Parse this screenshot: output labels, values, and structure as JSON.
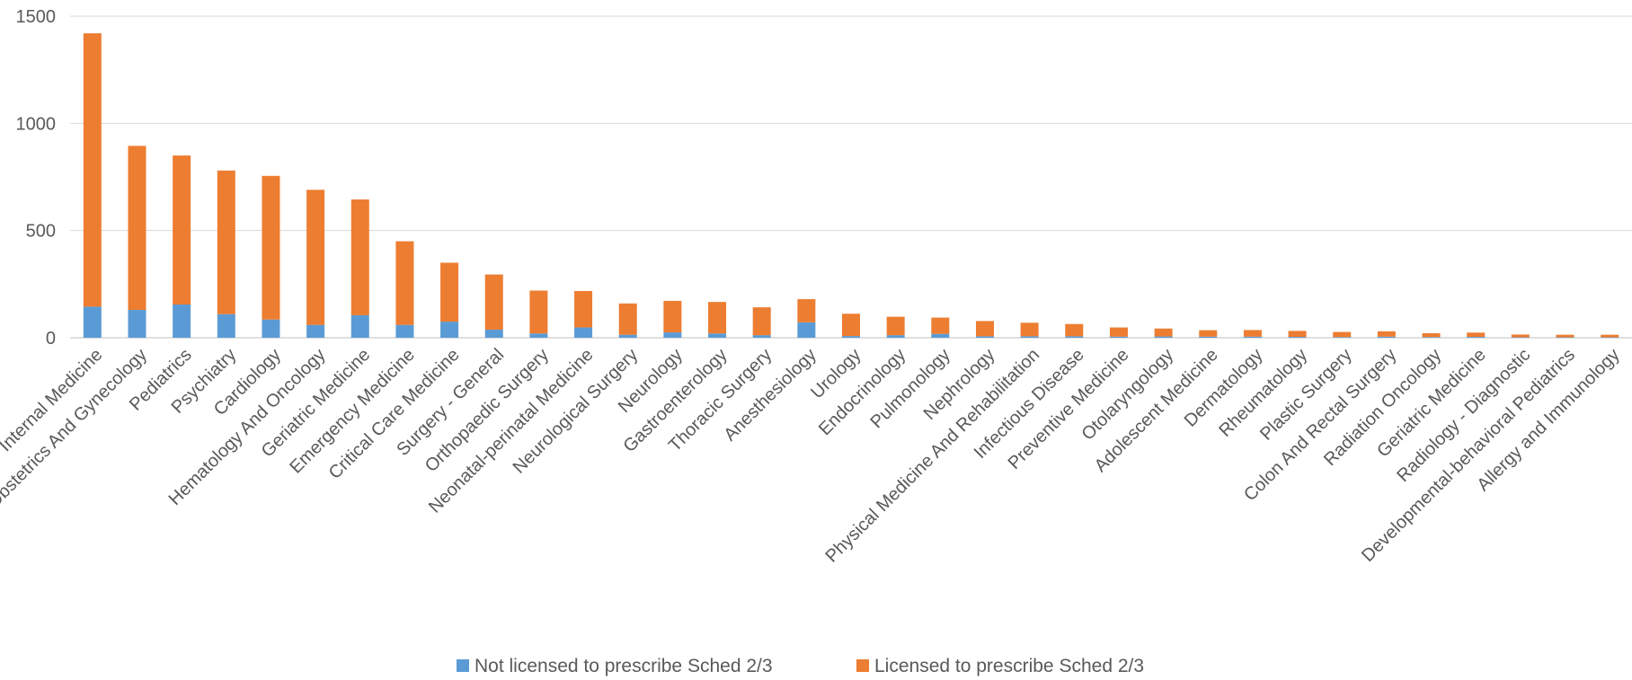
{
  "chart_data": {
    "type": "bar",
    "stacked": true,
    "title": "",
    "xlabel": "",
    "ylabel": "",
    "ylim": [
      0,
      1500
    ],
    "yticks": [
      0,
      500,
      1000,
      1500
    ],
    "grid": true,
    "legend_position": "bottom",
    "categories": [
      "Internal Medicine",
      "Obstetrics And Gynecology",
      "Pediatrics",
      "Psychiatry",
      "Cardiology",
      "Hematology And Oncology",
      "Geriatric Medicine",
      "Emergency Medicine",
      "Critical Care Medicine",
      "Surgery - General",
      "Orthopaedic Surgery",
      "Neonatal-perinatal Medicine",
      "Neurological Surgery",
      "Neurology",
      "Gastroenterology",
      "Thoracic Surgery",
      "Anesthesiology",
      "Urology",
      "Endocrinology",
      "Pulmonology",
      "Nephrology",
      "Physical Medicine And Rehabilitation",
      "Infectious Disease",
      "Preventive Medicine",
      "Otolaryngology",
      "Adolescent Medicine",
      "Dermatology",
      "Rheumatology",
      "Plastic Surgery",
      "Colon And Rectal Surgery",
      "Radiation Oncology",
      "Geriatric Medicine",
      "Radiology - Diagnostic",
      "Developmental-behavioral Pediatrics",
      "Allergy and Immunology"
    ],
    "series": [
      {
        "name": "Not licensed to prescribe Sched 2/3",
        "color": "#5b9bd5",
        "values": [
          145,
          130,
          155,
          110,
          85,
          60,
          105,
          60,
          75,
          38,
          20,
          48,
          14,
          25,
          20,
          12,
          72,
          8,
          12,
          18,
          7,
          7,
          7,
          5,
          6,
          5,
          5,
          4,
          3,
          5,
          3,
          4,
          2,
          2,
          2
        ]
      },
      {
        "name": "Licensed to prescribe Sched 2/3",
        "color": "#ed7d31",
        "values": [
          1275,
          765,
          695,
          670,
          670,
          630,
          540,
          390,
          275,
          257,
          200,
          170,
          146,
          147,
          147,
          130,
          108,
          104,
          86,
          76,
          71,
          63,
          57,
          43,
          37,
          30,
          31,
          28,
          24,
          25,
          18,
          20,
          13,
          12,
          12
        ]
      }
    ]
  }
}
